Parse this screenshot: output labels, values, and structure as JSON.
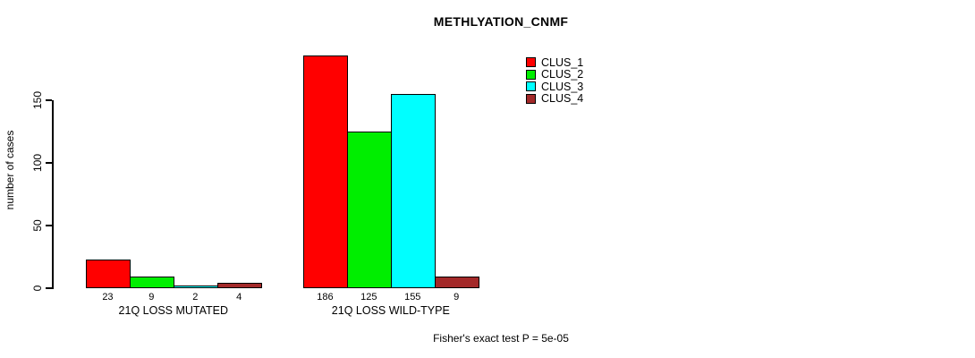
{
  "chart_data": {
    "type": "bar",
    "title": "METHLYATION_CNMF",
    "ylabel": "number of cases",
    "xlabel": "",
    "footnote": "Fisher's exact test P = 5e-05",
    "categories": [
      "21Q LOSS MUTATED",
      "21Q LOSS WILD-TYPE"
    ],
    "series": [
      {
        "name": "CLUS_1",
        "color": "#FF0000",
        "values": [
          23,
          186
        ]
      },
      {
        "name": "CLUS_2",
        "color": "#00EE00",
        "values": [
          9,
          125
        ]
      },
      {
        "name": "CLUS_3",
        "color": "#00FFFF",
        "values": [
          2,
          155
        ]
      },
      {
        "name": "CLUS_4",
        "color": "#A32929",
        "values": [
          4,
          9
        ]
      }
    ],
    "yticks": [
      0,
      50,
      100,
      150
    ],
    "ylim": [
      0,
      186
    ],
    "grid": false,
    "legend_position": "top-right",
    "bar_value_labels": true,
    "axis_color": "#000000",
    "background_color": "#FFFFFF"
  }
}
